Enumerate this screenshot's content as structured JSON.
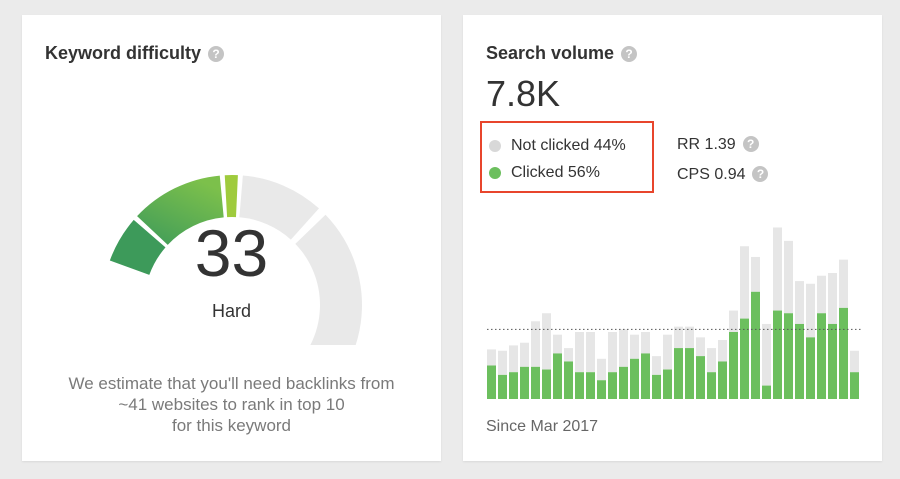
{
  "keyword_difficulty": {
    "title": "Keyword difficulty",
    "value": "33",
    "label": "Hard",
    "description_lines": [
      "We estimate that you'll need backlinks from",
      "~41 websites to rank in top 10",
      "for this keyword"
    ],
    "gauge_level_percent": 33,
    "colors": {
      "track": "#e9e9e9",
      "segment_low": "#3d9a5a",
      "segment_mid": "#7cc04b",
      "segment_mark": "#9fcb3d"
    }
  },
  "search_volume": {
    "title": "Search volume",
    "value": "7.8K",
    "legend": [
      {
        "label": "Not clicked 44%",
        "color": "#d8d8d8"
      },
      {
        "label": "Clicked 56%",
        "color": "#6cbf5e"
      }
    ],
    "rr": {
      "label": "RR 1.39"
    },
    "cps": {
      "label": "CPS 0.94"
    },
    "since": "Since Mar 2017",
    "highlight_color": "#e8452c",
    "chart_data": {
      "type": "bar",
      "stacked": true,
      "average_line": 0.52,
      "series": [
        {
          "name": "Clicked",
          "color": "#6cbf5e",
          "values": [
            0.25,
            0.18,
            0.2,
            0.24,
            0.24,
            0.22,
            0.34,
            0.28,
            0.2,
            0.2,
            0.14,
            0.2,
            0.24,
            0.3,
            0.34,
            0.18,
            0.22,
            0.38,
            0.38,
            0.32,
            0.2,
            0.28,
            0.5,
            0.6,
            0.8,
            0.1,
            0.66,
            0.64,
            0.56,
            0.46,
            0.64,
            0.56,
            0.68,
            0.2
          ]
        },
        {
          "name": "Not clicked",
          "color": "#e6e6e6",
          "values": [
            0.12,
            0.18,
            0.2,
            0.18,
            0.34,
            0.42,
            0.14,
            0.1,
            0.3,
            0.3,
            0.16,
            0.3,
            0.28,
            0.18,
            0.16,
            0.14,
            0.26,
            0.16,
            0.16,
            0.14,
            0.18,
            0.16,
            0.16,
            0.54,
            0.26,
            0.46,
            0.62,
            0.54,
            0.32,
            0.4,
            0.28,
            0.38,
            0.36,
            0.16
          ]
        }
      ]
    }
  }
}
